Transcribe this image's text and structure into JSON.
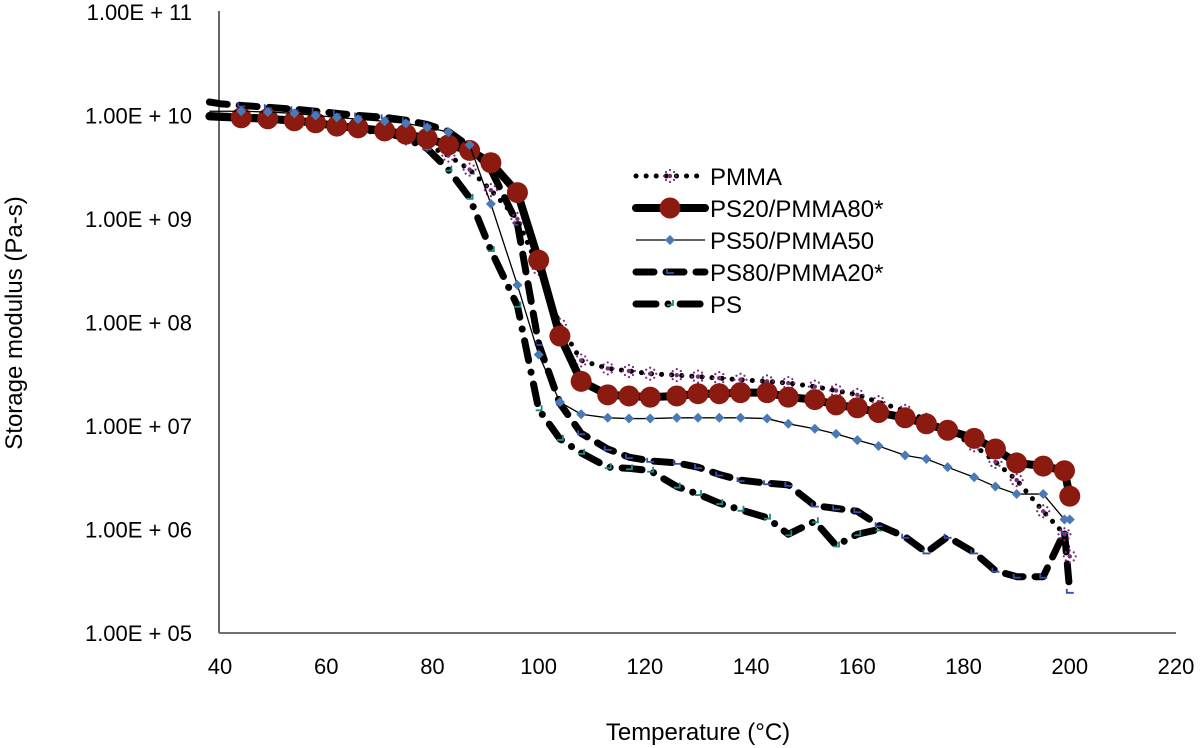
{
  "chart_data": {
    "type": "line",
    "title": "",
    "xlabel": "Temperature (°C)",
    "ylabel": "Storage modulus (Pa-s)",
    "xlim": [
      40,
      220
    ],
    "ylim": [
      100000.0,
      100000000000.0
    ],
    "yscale": "log",
    "grid": false,
    "legend_position": "center-right",
    "x_ticks": [
      {
        "value": 40,
        "label": "40"
      },
      {
        "value": 60,
        "label": "60"
      },
      {
        "value": 80,
        "label": "80"
      },
      {
        "value": 100,
        "label": "100"
      },
      {
        "value": 120,
        "label": "120"
      },
      {
        "value": 140,
        "label": "140"
      },
      {
        "value": 160,
        "label": "160"
      },
      {
        "value": 180,
        "label": "180"
      },
      {
        "value": 200,
        "label": "200"
      },
      {
        "value": 220,
        "label": "220"
      }
    ],
    "y_ticks": [
      {
        "value": 100000.0,
        "label": "1.00E + 05"
      },
      {
        "value": 1000000.0,
        "label": "1.00E + 06"
      },
      {
        "value": 10000000.0,
        "label": "1.00E + 07"
      },
      {
        "value": 100000000.0,
        "label": "1.00E + 08"
      },
      {
        "value": 1000000000.0,
        "label": "1.00E + 09"
      },
      {
        "value": 10000000000.0,
        "label": "1.00E + 10"
      },
      {
        "value": 100000000000.0,
        "label": "1.00E + 11"
      }
    ],
    "x": [
      38,
      40,
      44,
      49,
      54,
      58,
      62,
      66,
      71,
      75,
      79,
      83,
      87,
      91,
      96,
      100,
      104,
      108,
      113,
      117,
      121,
      126,
      130,
      134,
      138,
      143,
      147,
      152,
      156,
      160,
      164,
      169,
      173,
      177,
      182,
      186,
      190,
      195,
      199,
      200
    ],
    "series": [
      {
        "name": "PMMA",
        "style": "dotted",
        "color": "#000000",
        "marker": "star",
        "marker_color": "#7b2c7b",
        "values": [
          10000000000.0,
          9800000000.0,
          9300000000.0,
          9000000000.0,
          8600000000.0,
          8200000000.0,
          7700000000.0,
          7200000000.0,
          6700000000.0,
          6000000000.0,
          5200000000.0,
          4100000000.0,
          3000000000.0,
          1900000000.0,
          1000000000.0,
          330000000.0,
          95000000.0,
          43000000.0,
          36000000.0,
          34000000.0,
          32000000.0,
          31000000.0,
          30000000.0,
          29000000.0,
          28000000.0,
          27000000.0,
          26000000.0,
          24000000.0,
          22000000.0,
          20000000.0,
          17000000.0,
          14000000.0,
          11500000.0,
          9000000.0,
          6500000.0,
          4500000.0,
          3000000.0,
          1500000.0,
          900000.0,
          550000.0
        ]
      },
      {
        "name": "PS20/PMMA80*",
        "style": "solid-thick",
        "color": "#000000",
        "marker": "circle",
        "marker_color": "#8b1a10",
        "values": [
          9800000000.0,
          9700000000.0,
          9500000000.0,
          9300000000.0,
          8900000000.0,
          8500000000.0,
          7900000000.0,
          7600000000.0,
          7100000000.0,
          6600000000.0,
          6000000000.0,
          5200000000.0,
          4600000000.0,
          3500000000.0,
          1800000000.0,
          400000000.0,
          74000000.0,
          27000000.0,
          20000000.0,
          19500000.0,
          19000000.0,
          19500000.0,
          20500000.0,
          20500000.0,
          21000000.0,
          21000000.0,
          19000000.0,
          18000000.0,
          16000000.0,
          15000000.0,
          13500000.0,
          12000000.0,
          10500000.0,
          9100000.0,
          7600000.0,
          6000000.0,
          4400000.0,
          4100000.0,
          3700000.0,
          2100000.0
        ]
      },
      {
        "name": "PS50/PMMA50",
        "style": "solid-thin",
        "color": "#000000",
        "marker": "diamond",
        "marker_color": "#4a7ab5",
        "values": [
          11000000000.0,
          11000000000.0,
          11000000000.0,
          10800000000.0,
          10500000000.0,
          10000000000.0,
          9600000000.0,
          9200000000.0,
          8800000000.0,
          8400000000.0,
          7700000000.0,
          6900000000.0,
          5200000000.0,
          1400000000.0,
          230000000.0,
          49000000.0,
          17000000.0,
          13000000.0,
          12000000.0,
          11800000.0,
          11800000.0,
          12000000.0,
          12000000.0,
          12000000.0,
          12000000.0,
          11800000.0,
          10500000.0,
          9400000.0,
          8400000.0,
          7300000.0,
          6400000.0,
          5200000.0,
          4800000.0,
          4000000.0,
          3200000.0,
          2600000.0,
          2200000.0,
          2200000.0,
          1250000.0,
          1250000.0
        ]
      },
      {
        "name": "PS80/PMMA20*",
        "style": "dashed",
        "color": "#000000",
        "marker": "dash-hook",
        "marker_color": "#3a4fa8",
        "values": [
          13500000000.0,
          13000000000.0,
          12500000000.0,
          12000000000.0,
          11500000000.0,
          11000000000.0,
          10500000000.0,
          10000000000.0,
          9600000000.0,
          9000000000.0,
          8200000000.0,
          7000000000.0,
          5000000000.0,
          3000000000.0,
          900000000.0,
          62000000.0,
          16500000.0,
          8500000.0,
          6000000.0,
          5000000.0,
          4600000.0,
          4400000.0,
          4000000.0,
          3400000.0,
          3000000.0,
          2800000.0,
          2700000.0,
          1700000.0,
          1600000.0,
          1500000.0,
          1100000.0,
          850000.0,
          600000.0,
          850000.0,
          600000.0,
          400000.0,
          350000.0,
          350000.0,
          950000.0,
          250000.0
        ]
      },
      {
        "name": "PS",
        "style": "dash-dot",
        "color": "#000000",
        "marker": "tick",
        "marker_color": "#1f8a84",
        "values": [
          10000000000.0,
          9900000000.0,
          9700000000.0,
          9400000000.0,
          9000000000.0,
          8600000000.0,
          8100000000.0,
          7500000000.0,
          6900000000.0,
          6000000000.0,
          4800000000.0,
          3000000000.0,
          1600000000.0,
          500000000.0,
          145000000.0,
          14500000.0,
          7500000.0,
          5500000.0,
          4000000.0,
          3900000.0,
          3700000.0,
          2600000.0,
          2200000.0,
          1800000.0,
          1550000.0,
          1300000.0,
          900000.0,
          1200000.0,
          700000.0,
          900000.0,
          1000000.0,
          null,
          null,
          null,
          null,
          null,
          null,
          null,
          null,
          null
        ]
      }
    ]
  }
}
